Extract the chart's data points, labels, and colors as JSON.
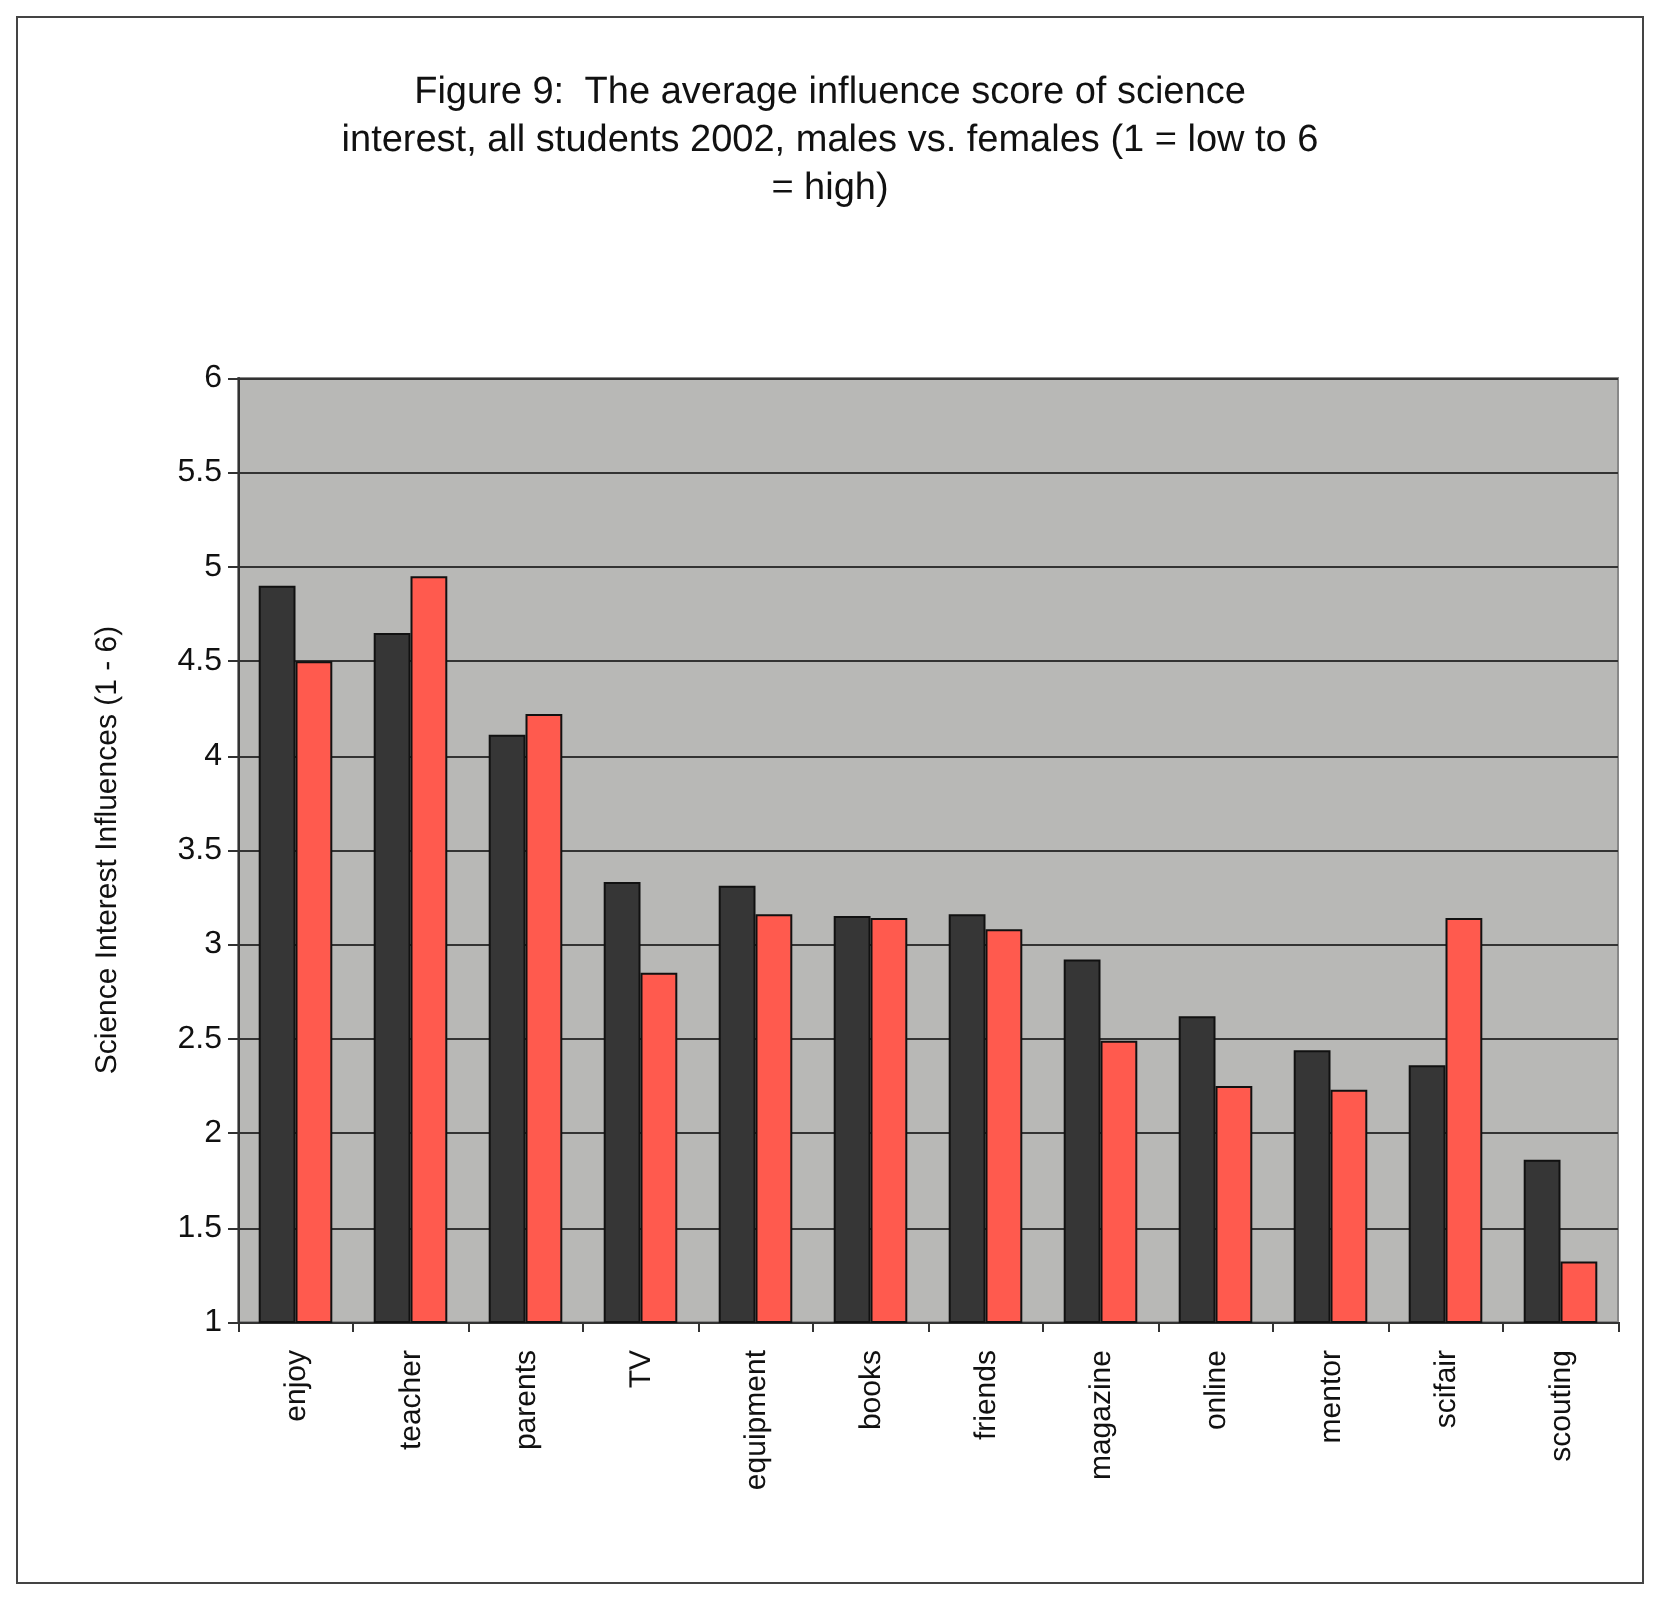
{
  "chart_data": {
    "type": "bar",
    "title": "Figure 9:  The average influence score of science\ninterest, all students 2002, males vs. females (1 = low to 6\n= high)",
    "ylabel": "Science Interest Influences (1 - 6)",
    "categories": [
      "enjoy",
      "teacher",
      "parents",
      "TV",
      "equipment",
      "books",
      "friends",
      "magazine",
      "online",
      "mentor",
      "scifair",
      "scouting"
    ],
    "series": [
      {
        "color": "#363636",
        "values": [
          4.9,
          4.65,
          4.11,
          3.33,
          3.31,
          3.15,
          3.16,
          2.92,
          2.62,
          2.44,
          2.36,
          1.86
        ]
      },
      {
        "color": "#ff5a4e",
        "values": [
          4.5,
          4.95,
          4.22,
          2.85,
          3.16,
          3.14,
          3.08,
          2.49,
          2.25,
          2.23,
          3.14,
          1.32
        ]
      }
    ],
    "ylim": [
      1,
      6
    ],
    "yticks": [
      1,
      1.5,
      2,
      2.5,
      3,
      3.5,
      4,
      4.5,
      5,
      5.5,
      6
    ],
    "grid": "y"
  }
}
